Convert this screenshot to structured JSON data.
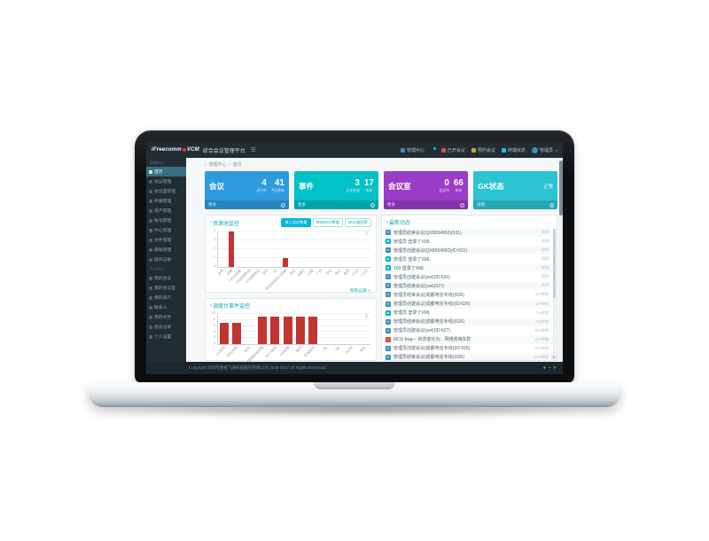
{
  "navbar": {
    "logo": {
      "brand_left": "iFreecomm",
      "brand_right": "VCM",
      "product": "综合会议管理平台"
    },
    "items": [
      {
        "type": "link",
        "label": "管理中心",
        "icon": "grid-icon",
        "color": "#3c8dbc"
      },
      {
        "type": "bell",
        "icon": "bell-icon",
        "badge_color": "#00c0ef"
      },
      {
        "type": "link",
        "label": "已开会议",
        "icon": "live-meeting-icon",
        "color": "#d9534f"
      },
      {
        "type": "link",
        "label": "预约会议",
        "icon": "schedule-meeting-icon",
        "color": "#c9a13b"
      },
      {
        "type": "link",
        "label": "终端状态",
        "icon": "terminal-status-icon",
        "color": "#2fb5d2"
      }
    ],
    "user": {
      "name": "管理员"
    }
  },
  "sidebar": {
    "sections": [
      {
        "label": "管理中心",
        "items": [
          {
            "label": "首页",
            "active": true,
            "chev": false
          },
          {
            "label": "会议管理",
            "chev": true
          },
          {
            "label": "会议室管理",
            "chev": true
          },
          {
            "label": "终端管理",
            "chev": true
          },
          {
            "label": "资产管理",
            "chev": true
          },
          {
            "label": "账号管理",
            "chev": true
          },
          {
            "label": "中心管理",
            "chev": true
          },
          {
            "label": "文件管理",
            "chev": true
          },
          {
            "label": "级联管理",
            "chev": true
          },
          {
            "label": "操作记录",
            "chev": true
          }
        ]
      },
      {
        "label": "个人中心",
        "items": [
          {
            "label": "我的会议",
            "chev": false
          },
          {
            "label": "我的会议室",
            "chev": false
          },
          {
            "label": "我的资产",
            "chev": false
          },
          {
            "label": "联系人",
            "chev": false
          },
          {
            "label": "我的文件",
            "chev": false
          },
          {
            "label": "会议记录",
            "chev": false
          },
          {
            "label": "个人设置",
            "chev": false
          }
        ]
      }
    ]
  },
  "breadcrumb": {
    "root": "管理中心",
    "separator": ">",
    "current": "首页"
  },
  "cards": [
    {
      "title": "会议",
      "color": "#2e9adf",
      "stats": [
        {
          "value": "4",
          "label": "进行中"
        },
        {
          "value": "41",
          "label": "今日所有"
        }
      ],
      "footer": "更多"
    },
    {
      "title": "事件",
      "color": "#00c0c8",
      "stats": [
        {
          "value": "3",
          "label": "正在处理"
        },
        {
          "value": "17",
          "label": "所有"
        }
      ],
      "footer": "更多"
    },
    {
      "title": "会议室",
      "color": "#9b3cc8",
      "stats": [
        {
          "value": "0",
          "label": "会议中"
        },
        {
          "value": "66",
          "label": "所有"
        }
      ],
      "footer": "更多"
    },
    {
      "title": "GK状态",
      "color": "#2cc3d2",
      "status": "正常",
      "footer": "详情"
    }
  ],
  "chart_data": [
    {
      "type": "bar",
      "title": "资源池监控",
      "buttons": [
        "接入会议数量",
        "有效MCU数量",
        "MCU使用率"
      ],
      "active_button": 0,
      "categories": [
        "本地",
        "成都",
        "F5000成都",
        "128成都移动",
        "G3成都电信",
        "深圳",
        "4K",
        "移动双线MCU成都",
        "测试",
        "成都2",
        "32路",
        "广州",
        "专线",
        "南山",
        "备用",
        "F128",
        "1-128"
      ],
      "values": [
        0,
        4,
        0,
        0,
        0,
        0,
        0,
        1,
        0,
        0,
        0,
        0,
        0,
        0,
        0,
        0,
        0
      ],
      "ylim": [
        0,
        4
      ],
      "yticks": [
        0,
        1,
        2,
        3,
        4
      ],
      "bar_color": "#c23531",
      "grid": true,
      "link": "所有记录 >"
    },
    {
      "type": "bar",
      "title": "调度台事件监控",
      "categories": [
        "GK掉线",
        "呼叫失败",
        "丢包",
        "电信链路断链告警",
        "MCU离线",
        "SIP故障",
        "掉线",
        "终端离线",
        "2号",
        "9号",
        "100号",
        "其他"
      ],
      "values": [
        7,
        7,
        0,
        9,
        9,
        9,
        9,
        9,
        0,
        0,
        0,
        0
      ],
      "ylim": [
        0,
        10
      ],
      "yticks": [
        0,
        2,
        4,
        6,
        8,
        10
      ],
      "bar_color": "#c23531",
      "grid": true
    }
  ],
  "activity": {
    "title": "最新动态",
    "icon_styles": {
      "meeting": {
        "color": "#3c8dbc",
        "glyph": "✉"
      },
      "login": {
        "color": "#00b4d2",
        "glyph": "☻"
      },
      "alert": {
        "color": "#dd4b39",
        "glyph": "!"
      }
    },
    "items": [
      {
        "type": "meeting",
        "text": "管理员结束会议(QX8054950)(631)",
        "time": "刚刚"
      },
      {
        "type": "login",
        "text": "管理员 登录了XML",
        "time": "刚刚"
      },
      {
        "type": "meeting",
        "text": "管理员创建会议(QX8054950)(ID:631)",
        "time": "刚刚"
      },
      {
        "type": "login",
        "text": "管理员 登录了XML",
        "time": "刚刚"
      },
      {
        "type": "login",
        "text": "100 登录了XML",
        "time": "刚刚"
      },
      {
        "type": "meeting",
        "text": "管理员创建会议(ywt)(ID:630)",
        "time": "刚刚"
      },
      {
        "type": "meeting",
        "text": "管理员结束会议(ywt)(627)",
        "time": "刚刚"
      },
      {
        "type": "meeting",
        "text": "管理员结束会议(成都电信专线)(626)",
        "time": "4分钟前"
      },
      {
        "type": "meeting",
        "text": "管理员创建会议(成都电信专线)(ID:626)",
        "time": "4分钟前"
      },
      {
        "type": "login",
        "text": "管理员 登录了XML",
        "time": "7分钟前"
      },
      {
        "type": "meeting",
        "text": "管理员结束会议(成都电信专线)(626)",
        "time": "7分钟前"
      },
      {
        "type": "meeting",
        "text": "管理员创建会议(ywt)(ID:627)",
        "time": "8分钟前"
      },
      {
        "type": "alert",
        "text": "MCU bug--- 状态变化为：网络连接失败",
        "time": "8分钟前"
      },
      {
        "type": "meeting",
        "text": "管理员创建会议(成都电信专线)(ID:626)",
        "time": "9分钟前"
      },
      {
        "type": "meeting",
        "text": "管理员结束会议(成都电信专线)(625)",
        "time": "10分钟前"
      }
    ]
  },
  "footer": {
    "copyright": "Copyright 深圳市捷视飞通科技股份有限公司 2008-2017 All Rights Reserved",
    "right_icons": "● ▪ ▾"
  }
}
